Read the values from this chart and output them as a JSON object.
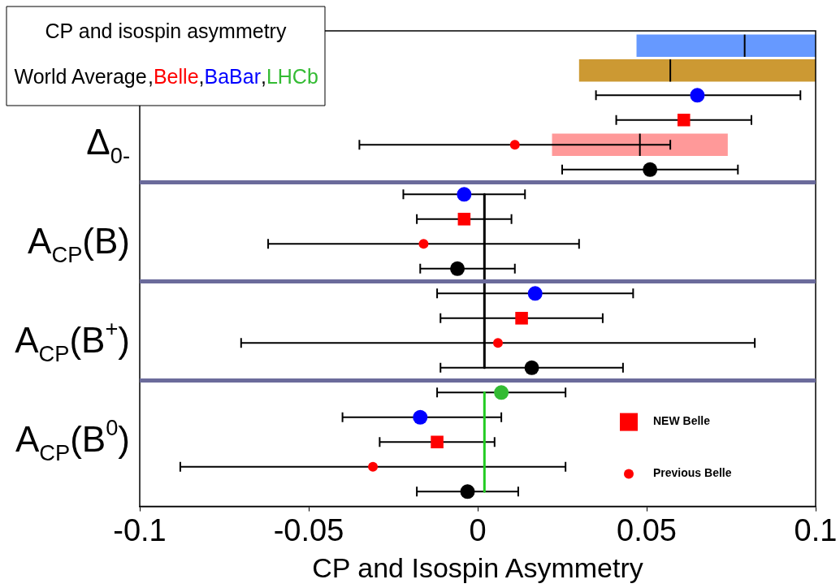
{
  "chart_data": {
    "type": "scatter",
    "orientation": "horizontal",
    "title": "CP and isospin asymmetry",
    "subtitle": "World Average,Belle,BaBar,LHCb",
    "xlabel": "CP and Isospin Asymmetry",
    "categories": [
      null,
      null,
      null,
      null,
      "Δ$_{0-}$",
      null,
      null,
      null,
      "A$_{CP}$(B)",
      null,
      null,
      null,
      "A$_{CP}$(B$^{+}$)",
      null,
      null,
      null,
      "A$_{CP}$(B$^{0}$)",
      null,
      null
    ],
    "xlim": [
      -0.1,
      0.1
    ],
    "xticks": [
      -0.1,
      -0.05,
      0,
      0.05,
      0.1
    ],
    "legend": "bottom right",
    "series": [
      {
        "color": "#000000",
        "marker": "circle",
        "values": [
          null,
          null,
          null,
          null,
          null,
          0.051,
          null,
          null,
          null,
          -0.006,
          null,
          null,
          null,
          0.016,
          null,
          null,
          null,
          null,
          -0.003
        ],
        "errors": [
          null,
          null,
          null,
          null,
          null,
          [
            0.025,
            0.077
          ],
          null,
          null,
          null,
          [
            -0.017,
            0.011
          ],
          null,
          null,
          null,
          [
            -0.011,
            0.043
          ],
          null,
          null,
          null,
          null,
          [
            -0.018,
            0.012
          ]
        ]
      },
      {
        "name": "NEW Belle",
        "color": "#ff0000",
        "marker": "square",
        "values": [
          null,
          null,
          null,
          0.061,
          null,
          null,
          null,
          -0.004,
          null,
          null,
          null,
          0.013,
          null,
          null,
          null,
          null,
          -0.012,
          null,
          null
        ],
        "errors": [
          null,
          null,
          null,
          [
            0.041,
            0.081
          ],
          null,
          null,
          null,
          [
            -0.018,
            0.01
          ],
          null,
          null,
          null,
          [
            -0.011,
            0.037
          ],
          null,
          null,
          null,
          null,
          [
            -0.029,
            0.005
          ],
          null,
          null
        ]
      },
      {
        "color": "#0000ff",
        "marker": "circle",
        "values": [
          null,
          null,
          0.065,
          null,
          null,
          null,
          -0.004,
          null,
          null,
          null,
          0.017,
          null,
          null,
          null,
          null,
          -0.017,
          null,
          null,
          null
        ],
        "errors": [
          null,
          null,
          [
            0.035,
            0.0955
          ],
          null,
          null,
          null,
          [
            -0.022,
            0.014
          ],
          null,
          null,
          null,
          [
            -0.012,
            0.046
          ],
          null,
          null,
          null,
          null,
          [
            -0.04,
            0.007
          ],
          null,
          null,
          null
        ]
      },
      {
        "color": "#33bb33",
        "marker": "circle",
        "values": [
          null,
          null,
          null,
          null,
          null,
          null,
          null,
          null,
          null,
          null,
          null,
          null,
          null,
          null,
          0.007,
          null,
          null,
          null,
          null
        ],
        "errors": [
          null,
          null,
          null,
          null,
          null,
          null,
          null,
          null,
          null,
          null,
          null,
          null,
          null,
          null,
          [
            -0.012,
            0.026
          ],
          null,
          null,
          null,
          null
        ]
      },
      {
        "name": "Previous Belle",
        "color": "#ff0000",
        "marker": "circle",
        "values": [
          null,
          null,
          null,
          null,
          0.011,
          null,
          null,
          null,
          -0.016,
          null,
          null,
          null,
          0.006,
          null,
          null,
          null,
          null,
          -0.031,
          null
        ],
        "errors": [
          null,
          null,
          null,
          null,
          [
            -0.035,
            0.057
          ],
          null,
          null,
          null,
          [
            -0.062,
            0.03
          ],
          null,
          null,
          null,
          [
            -0.07,
            0.082
          ],
          null,
          null,
          null,
          null,
          [
            -0.088,
            0.026
          ],
          null
        ]
      },
      {
        "type": "line",
        "color": "#000000",
        "values": [
          null,
          null,
          null,
          null,
          null,
          null,
          0.002,
          0.002,
          0.002,
          0.002,
          0.002,
          0.002,
          0.002,
          0.002,
          null,
          null,
          null,
          null,
          null
        ]
      },
      {
        "type": "line",
        "color": "#22cc22",
        "values": [
          null,
          null,
          null,
          null,
          null,
          null,
          null,
          null,
          null,
          null,
          null,
          null,
          null,
          null,
          0.002,
          0.002,
          0.002,
          0.002,
          0.002
        ]
      },
      {
        "type": "box",
        "color": "#6699ff",
        "boxes": [
          {
            "low": 0.047,
            "q1": 0.047,
            "median": 0.079,
            "q3": 0.1,
            "high": 0.1
          },
          null,
          null,
          null,
          null,
          null,
          null,
          null,
          null,
          null,
          null,
          null,
          null,
          null,
          null,
          null,
          null,
          null,
          null
        ]
      },
      {
        "type": "box",
        "color": "#cc9933",
        "boxes": [
          null,
          {
            "low": 0.03,
            "q1": 0.03,
            "median": 0.057,
            "q3": 0.1,
            "high": 0.1
          },
          null,
          null,
          null,
          null,
          null,
          null,
          null,
          null,
          null,
          null,
          null,
          null,
          null,
          null,
          null,
          null,
          null
        ]
      },
      {
        "type": "box",
        "color": "#ff9999",
        "boxes": [
          null,
          null,
          null,
          null,
          {
            "low": 0.022,
            "q1": 0.022,
            "median": 0.048,
            "q3": 0.074,
            "high": 0.074
          },
          null,
          null,
          null,
          null,
          null,
          null,
          null,
          null,
          null,
          null,
          null,
          null,
          null,
          null
        ]
      }
    ]
  }
}
